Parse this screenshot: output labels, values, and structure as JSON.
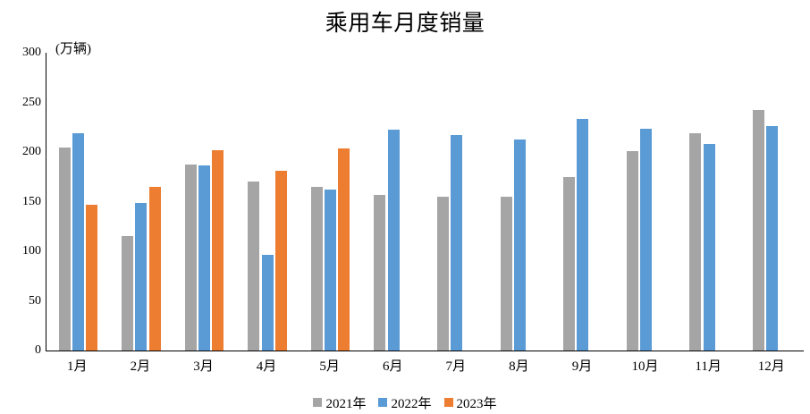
{
  "chart": {
    "title": "乘用车月度销量",
    "unit_label": "(万辆)"
  },
  "chart_data": {
    "type": "bar",
    "title": "乘用车月度销量",
    "ylabel": "(万辆)",
    "xlabel": "",
    "categories": [
      "1月",
      "2月",
      "3月",
      "4月",
      "5月",
      "6月",
      "7月",
      "8月",
      "9月",
      "10月",
      "11月",
      "12月"
    ],
    "series": [
      {
        "name": "2021年",
        "color": "#a5a5a5",
        "values": [
          204.5,
          115.6,
          187.4,
          170.4,
          164.6,
          156.9,
          155.1,
          155.2,
          175.1,
          200.7,
          219.2,
          242.2
        ]
      },
      {
        "name": "2022年",
        "color": "#5b9bd5",
        "values": [
          218.6,
          148.7,
          186.4,
          96.5,
          162.3,
          222.2,
          217.4,
          212.5,
          233.2,
          223.1,
          208.1,
          226.3
        ]
      },
      {
        "name": "2023年",
        "color": "#ed7d31",
        "values": [
          146.9,
          165.3,
          201.7,
          181.1,
          203.5,
          null,
          null,
          null,
          null,
          null,
          null,
          null
        ]
      }
    ],
    "ylim": [
      0,
      300
    ],
    "y_ticks": [
      0,
      50,
      100,
      150,
      200,
      250,
      300
    ],
    "grid": false,
    "legend_position": "bottom",
    "axis_color": "#000000",
    "text_color": "#000000"
  }
}
